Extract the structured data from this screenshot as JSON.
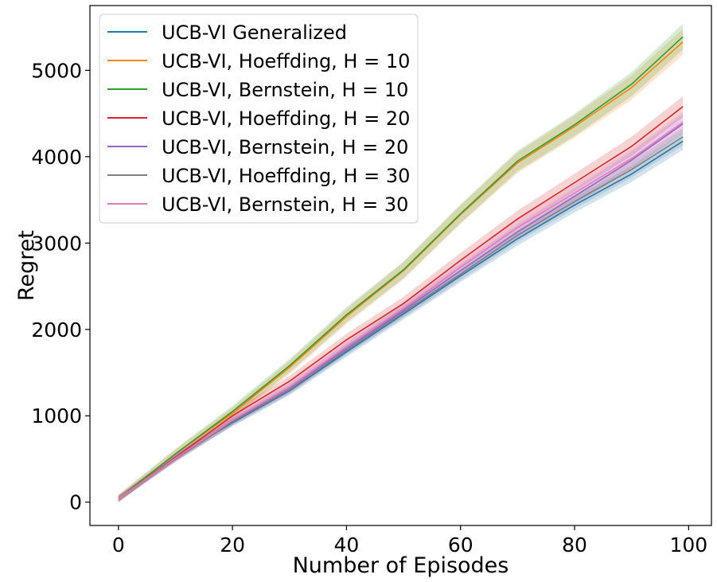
{
  "chart_data": {
    "type": "line",
    "title": "",
    "xlabel": "Number of Episodes",
    "ylabel": "Regret",
    "xlim": [
      -5,
      104
    ],
    "ylim": [
      -270,
      5750
    ],
    "xticks": [
      0,
      20,
      40,
      60,
      80,
      100
    ],
    "yticks": [
      0,
      1000,
      2000,
      3000,
      4000,
      5000
    ],
    "grid": false,
    "legend": "top-left",
    "shaded_band": true,
    "series": [
      {
        "name": "UCB-VI Generalized",
        "color": "#1f77b4",
        "band": 100,
        "x": [
          0,
          10,
          20,
          30,
          40,
          50,
          60,
          70,
          80,
          90,
          99
        ],
        "y": [
          40,
          520,
          920,
          1290,
          1740,
          2180,
          2620,
          3050,
          3440,
          3800,
          4180
        ]
      },
      {
        "name": "UCB-VI, Hoeffding, H = 10",
        "color": "#ff7f0e",
        "band": 150,
        "x": [
          0,
          10,
          20,
          30,
          40,
          50,
          60,
          70,
          80,
          90,
          99
        ],
        "y": [
          40,
          560,
          1030,
          1560,
          2150,
          2680,
          3330,
          3930,
          4350,
          4800,
          5330
        ]
      },
      {
        "name": "UCB-VI, Bernstein, H = 10",
        "color": "#2ca02c",
        "band": 150,
        "x": [
          0,
          10,
          20,
          30,
          40,
          50,
          60,
          70,
          80,
          90,
          99
        ],
        "y": [
          40,
          560,
          1050,
          1580,
          2170,
          2690,
          3340,
          3950,
          4370,
          4840,
          5390
        ]
      },
      {
        "name": "UCB-VI, Hoeffding, H = 20",
        "color": "#d62728",
        "band": 120,
        "x": [
          0,
          10,
          20,
          30,
          40,
          50,
          60,
          70,
          80,
          90,
          99
        ],
        "y": [
          40,
          520,
          1000,
          1400,
          1880,
          2300,
          2800,
          3280,
          3700,
          4120,
          4580
        ]
      },
      {
        "name": "UCB-VI, Bernstein, H = 20",
        "color": "#9467bd",
        "band": 110,
        "x": [
          0,
          10,
          20,
          30,
          40,
          50,
          60,
          70,
          80,
          90,
          99
        ],
        "y": [
          40,
          510,
          940,
          1320,
          1780,
          2220,
          2680,
          3130,
          3540,
          3960,
          4380
        ]
      },
      {
        "name": "UCB-VI, Hoeffding, H = 30",
        "color": "#7f7f7f",
        "band": 100,
        "x": [
          0,
          10,
          20,
          30,
          40,
          50,
          60,
          70,
          80,
          90,
          99
        ],
        "y": [
          40,
          500,
          930,
          1300,
          1760,
          2200,
          2640,
          3090,
          3480,
          3850,
          4230
        ]
      },
      {
        "name": "UCB-VI, Bernstein, H = 30",
        "color": "#e377c2",
        "band": 120,
        "x": [
          0,
          10,
          20,
          30,
          40,
          50,
          60,
          70,
          80,
          90,
          99
        ],
        "y": [
          40,
          510,
          950,
          1330,
          1800,
          2240,
          2720,
          3180,
          3580,
          3980,
          4400
        ]
      }
    ]
  }
}
